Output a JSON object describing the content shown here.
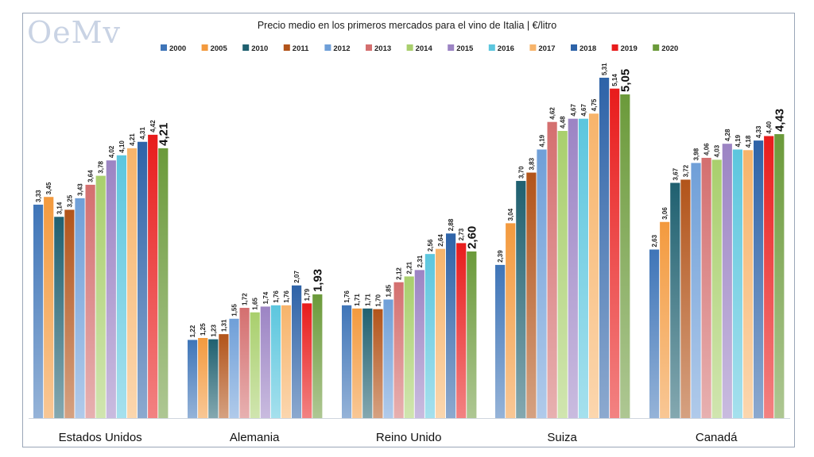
{
  "logo_text": "OeMv",
  "chart_data": {
    "type": "bar",
    "title": "Precio medio en los primeros mercados para el vino de Italia | €/litro",
    "unit": "€/litro",
    "categories": [
      "Estados Unidos",
      "Alemania",
      "Reino Unido",
      "Suiza",
      "Canadá"
    ],
    "ylim": [
      0,
      5.8
    ],
    "series": [
      {
        "name": "2000",
        "color": "#3f75b8",
        "values": [
          3.33,
          1.22,
          1.76,
          2.39,
          2.63
        ],
        "labels": [
          "3,33",
          "1,22",
          "1,76",
          "2,39",
          "2,63"
        ]
      },
      {
        "name": "2005",
        "color": "#f39a3e",
        "values": [
          3.45,
          1.25,
          1.71,
          3.04,
          3.06
        ],
        "labels": [
          "3,45",
          "1,25",
          "1,71",
          "3,04",
          "3,06"
        ]
      },
      {
        "name": "2010",
        "color": "#1f6070",
        "values": [
          3.14,
          1.23,
          1.71,
          3.7,
          3.67
        ],
        "labels": [
          "3,14",
          "1,23",
          "1,71",
          "3,70",
          "3,67"
        ]
      },
      {
        "name": "2011",
        "color": "#b2541a",
        "values": [
          3.25,
          1.31,
          1.7,
          3.83,
          3.72
        ],
        "labels": [
          "3,25",
          "1,31",
          "1,70",
          "3,83",
          "3,72"
        ]
      },
      {
        "name": "2012",
        "color": "#6f9fd8",
        "values": [
          3.43,
          1.55,
          1.85,
          4.19,
          3.98
        ],
        "labels": [
          "3,43",
          "1,55",
          "1,85",
          "4,19",
          "3,98"
        ]
      },
      {
        "name": "2013",
        "color": "#d46f6f",
        "values": [
          3.64,
          1.72,
          2.12,
          4.62,
          4.06
        ],
        "labels": [
          "3,64",
          "1,72",
          "2,12",
          "4,62",
          "4,06"
        ]
      },
      {
        "name": "2014",
        "color": "#a9cf6d",
        "values": [
          3.78,
          1.65,
          2.21,
          4.48,
          4.03
        ],
        "labels": [
          "3,78",
          "1,65",
          "2,21",
          "4,48",
          "4,03"
        ]
      },
      {
        "name": "2015",
        "color": "#9c84c4",
        "values": [
          4.02,
          1.74,
          2.31,
          4.67,
          4.28
        ],
        "labels": [
          "4,02",
          "1,74",
          "2,31",
          "4,67",
          "4,28"
        ]
      },
      {
        "name": "2016",
        "color": "#5cc6de",
        "values": [
          4.1,
          1.76,
          2.56,
          4.67,
          4.19
        ],
        "labels": [
          "4,10",
          "1,76",
          "2,56",
          "4,67",
          "4,19"
        ]
      },
      {
        "name": "2017",
        "color": "#f7b46b",
        "values": [
          4.21,
          1.76,
          2.64,
          4.75,
          4.18
        ],
        "labels": [
          "4,21",
          "1,76",
          "2,64",
          "4,75",
          "4,18"
        ]
      },
      {
        "name": "2018",
        "color": "#2e63a8",
        "values": [
          4.31,
          2.07,
          2.88,
          5.31,
          4.33
        ],
        "labels": [
          "4,31",
          "2,07",
          "2,88",
          "5,31",
          "4,33"
        ]
      },
      {
        "name": "2019",
        "color": "#e81c1c",
        "values": [
          4.42,
          1.79,
          2.73,
          5.14,
          4.4
        ],
        "labels": [
          "4,42",
          "1,79",
          "2,73",
          "5,14",
          "4,40"
        ]
      },
      {
        "name": "2020",
        "color": "#6b9a3a",
        "values": [
          4.21,
          1.93,
          2.6,
          5.05,
          4.43
        ],
        "labels": [
          "4,21",
          "1,93",
          "2,60",
          "5,05",
          "4,43"
        ]
      }
    ],
    "highlight_series": "2020",
    "legend_position": "top-center",
    "grid": false
  }
}
